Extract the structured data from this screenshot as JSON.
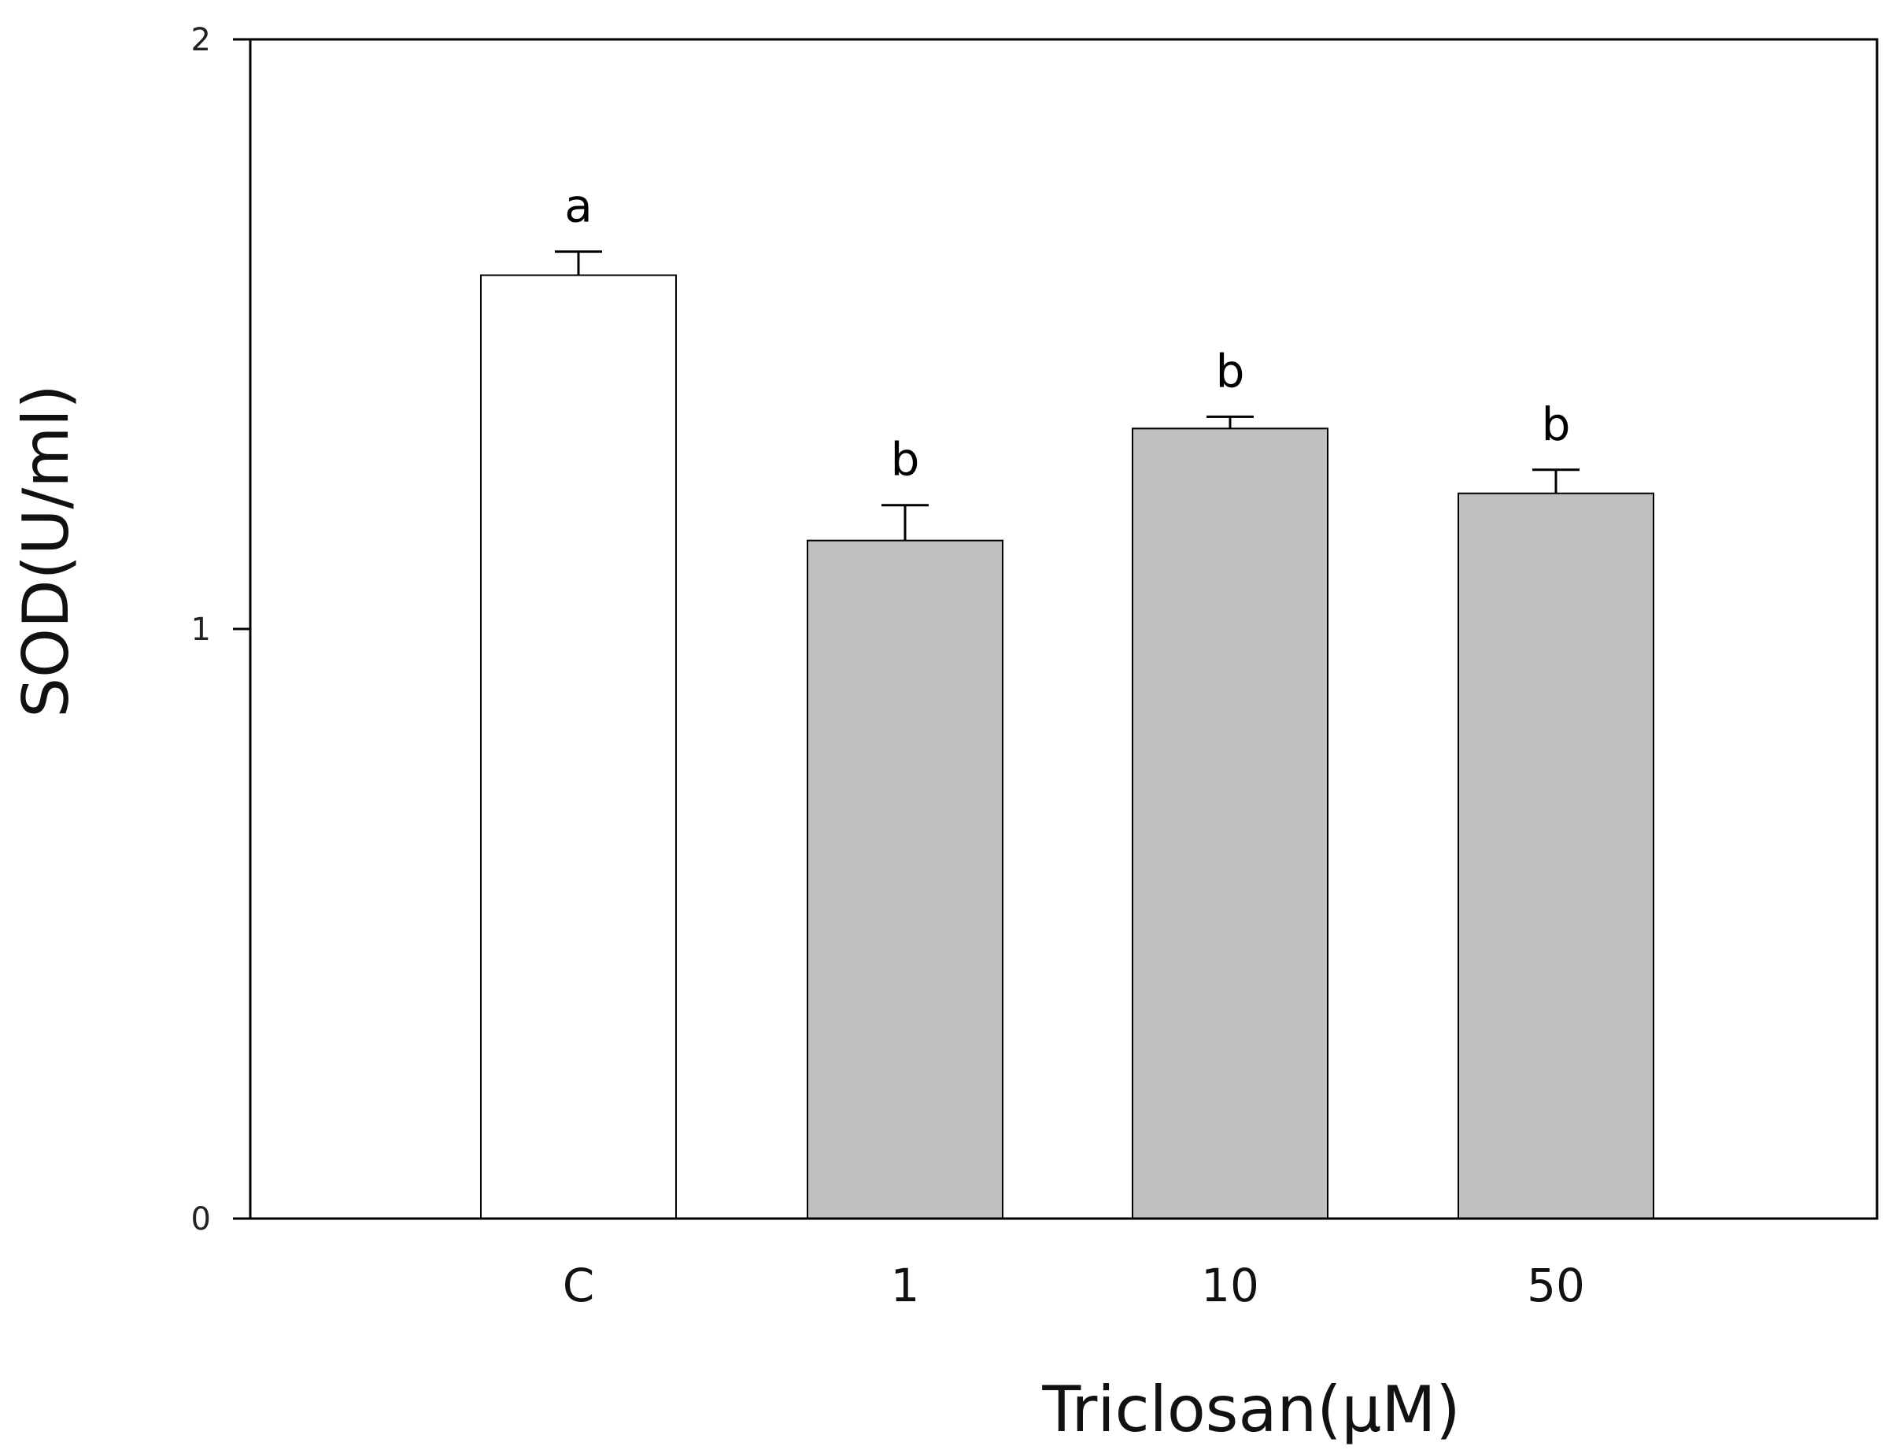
{
  "chart_data": {
    "type": "bar",
    "categories": [
      "C",
      "1",
      "10",
      "50"
    ],
    "values": [
      1.6,
      1.15,
      1.34,
      1.23
    ],
    "errors": [
      0.04,
      0.06,
      0.02,
      0.04
    ],
    "significance_labels": [
      "a",
      "b",
      "b",
      "b"
    ],
    "bar_colors": [
      "#ffffff",
      "#c0c0c0",
      "#c0c0c0",
      "#c0c0c0"
    ],
    "xlabel": "Triclosan(μM)",
    "ylabel": "SOD(U/ml)",
    "ylim": [
      0,
      2
    ],
    "yticks": [
      0,
      1,
      2
    ],
    "grid": false
  }
}
